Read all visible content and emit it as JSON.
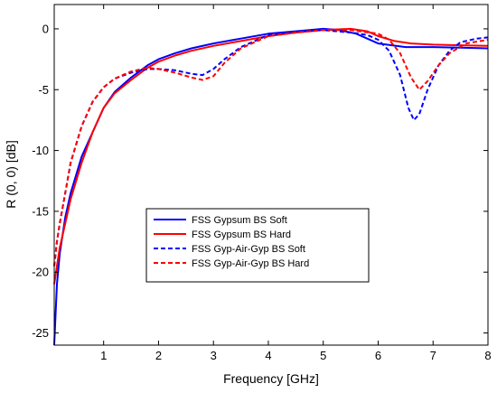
{
  "chart_data": {
    "type": "line",
    "title": "",
    "xlabel": "Frequency [GHz]",
    "ylabel": "R (0, 0) [dB]",
    "xlim": [
      0.1,
      8
    ],
    "ylim": [
      -26,
      2
    ],
    "xticks": [
      1,
      2,
      3,
      4,
      5,
      6,
      7,
      8
    ],
    "yticks": [
      -25,
      -20,
      -15,
      -10,
      -5,
      0
    ],
    "grid": false,
    "legend_position": "center",
    "series": [
      {
        "name": "FSS Gypsum BS Soft",
        "color": "#0000ff",
        "dash": "solid",
        "x": [
          0.1,
          0.15,
          0.2,
          0.3,
          0.4,
          0.5,
          0.6,
          0.8,
          1.0,
          1.2,
          1.5,
          1.8,
          2.0,
          2.3,
          2.6,
          3.0,
          3.5,
          4.0,
          4.5,
          5.0,
          5.3,
          5.6,
          6.0,
          6.5,
          7.0,
          7.5,
          8.0
        ],
        "y": [
          -26,
          -21,
          -18.5,
          -15.5,
          -13.5,
          -12,
          -10.5,
          -8.5,
          -6.5,
          -5.2,
          -4.0,
          -3.0,
          -2.5,
          -2.0,
          -1.6,
          -1.2,
          -0.8,
          -0.4,
          -0.2,
          0.0,
          -0.1,
          -0.4,
          -1.2,
          -1.5,
          -1.5,
          -1.55,
          -1.6
        ]
      },
      {
        "name": "FSS Gypsum BS Hard",
        "color": "#ff0000",
        "dash": "solid",
        "x": [
          0.1,
          0.15,
          0.2,
          0.3,
          0.4,
          0.5,
          0.6,
          0.8,
          1.0,
          1.2,
          1.5,
          1.8,
          2.0,
          2.3,
          2.6,
          3.0,
          3.5,
          4.0,
          4.5,
          5.0,
          5.5,
          5.8,
          6.0,
          6.3,
          6.6,
          7.0,
          7.5,
          8.0
        ],
        "y": [
          -21,
          -19.5,
          -18,
          -16,
          -14,
          -12.5,
          -11,
          -8.5,
          -6.5,
          -5.3,
          -4.2,
          -3.2,
          -2.7,
          -2.2,
          -1.8,
          -1.4,
          -1.0,
          -0.6,
          -0.3,
          -0.1,
          0.0,
          -0.2,
          -0.6,
          -1.0,
          -1.2,
          -1.3,
          -1.35,
          -1.4
        ]
      },
      {
        "name": "FSS Gyp-Air-Gyp BS Soft",
        "color": "#0000ff",
        "dash": "dashed",
        "x": [
          0.1,
          0.15,
          0.2,
          0.3,
          0.4,
          0.5,
          0.6,
          0.8,
          1.0,
          1.2,
          1.5,
          1.8,
          2.0,
          2.3,
          2.6,
          2.8,
          3.0,
          3.2,
          3.5,
          4.0,
          4.5,
          5.0,
          5.5,
          5.8,
          6.0,
          6.2,
          6.4,
          6.55,
          6.65,
          6.75,
          6.9,
          7.1,
          7.3,
          7.5,
          7.8,
          8.0
        ],
        "y": [
          -19.5,
          -17.5,
          -16,
          -13.5,
          -11,
          -9.5,
          -8,
          -6,
          -4.8,
          -4.1,
          -3.6,
          -3.3,
          -3.3,
          -3.4,
          -3.7,
          -3.8,
          -3.3,
          -2.5,
          -1.5,
          -0.5,
          -0.2,
          -0.1,
          -0.3,
          -0.5,
          -0.9,
          -1.8,
          -3.8,
          -6.5,
          -7.5,
          -7.0,
          -5.0,
          -3.0,
          -1.8,
          -1.1,
          -0.8,
          -0.7
        ]
      },
      {
        "name": "FSS Gyp-Air-Gyp BS Hard",
        "color": "#ff0000",
        "dash": "dashed",
        "x": [
          0.1,
          0.15,
          0.2,
          0.3,
          0.4,
          0.5,
          0.6,
          0.8,
          1.0,
          1.2,
          1.5,
          1.8,
          2.0,
          2.3,
          2.6,
          2.8,
          3.0,
          3.2,
          3.5,
          4.0,
          4.5,
          5.0,
          5.5,
          6.0,
          6.2,
          6.4,
          6.6,
          6.75,
          6.9,
          7.1,
          7.3,
          7.6,
          8.0
        ],
        "y": [
          -19.5,
          -17.5,
          -16,
          -13.5,
          -11,
          -9.5,
          -8,
          -6,
          -4.8,
          -4.1,
          -3.5,
          -3.2,
          -3.3,
          -3.6,
          -4.0,
          -4.2,
          -3.9,
          -2.8,
          -1.6,
          -0.6,
          -0.3,
          -0.1,
          -0.1,
          -0.4,
          -0.9,
          -2.0,
          -4.0,
          -5.0,
          -4.3,
          -3.0,
          -2.0,
          -1.2,
          -0.9
        ]
      }
    ]
  }
}
